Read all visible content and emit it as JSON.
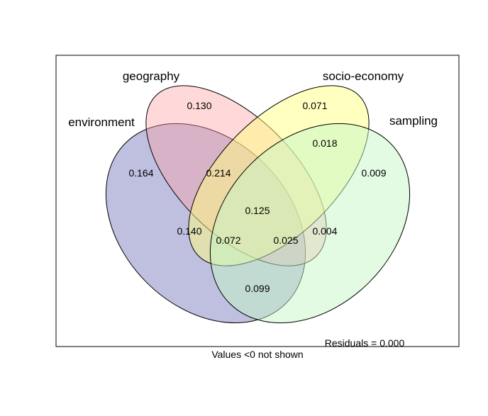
{
  "sets": [
    {
      "name": "environment",
      "color": "#8080c0"
    },
    {
      "name": "geography",
      "color": "#ff9f9f"
    },
    {
      "name": "socio-economy",
      "color": "#ffff80"
    },
    {
      "name": "sampling",
      "color": "#c6f7c6"
    }
  ],
  "regions": [
    {
      "sets": [
        "geography"
      ],
      "value": "0.130"
    },
    {
      "sets": [
        "socio-economy"
      ],
      "value": "0.071"
    },
    {
      "sets": [
        "socio-economy",
        "sampling"
      ],
      "value": "0.018"
    },
    {
      "sets": [
        "environment"
      ],
      "value": "0.164"
    },
    {
      "sets": [
        "environment",
        "geography"
      ],
      "value": "0.214"
    },
    {
      "sets": [
        "sampling"
      ],
      "value": "0.009"
    },
    {
      "sets": [
        "environment",
        "geography",
        "socio-economy",
        "sampling"
      ],
      "value": "0.125"
    },
    {
      "sets": [
        "environment",
        "geography",
        "socio-economy"
      ],
      "value": "0.140"
    },
    {
      "sets": [
        "environment",
        "geography",
        "sampling"
      ],
      "value": "0.072"
    },
    {
      "sets": [
        "environment",
        "socio-economy",
        "sampling"
      ],
      "value": "0.025"
    },
    {
      "sets": [
        "geography",
        "socio-economy",
        "sampling"
      ],
      "value": "0.004"
    },
    {
      "sets": [
        "environment",
        "sampling"
      ],
      "value": "0.099"
    }
  ],
  "residuals_text": "Residuals = 0.000",
  "footnote": "Values <0 not shown"
}
